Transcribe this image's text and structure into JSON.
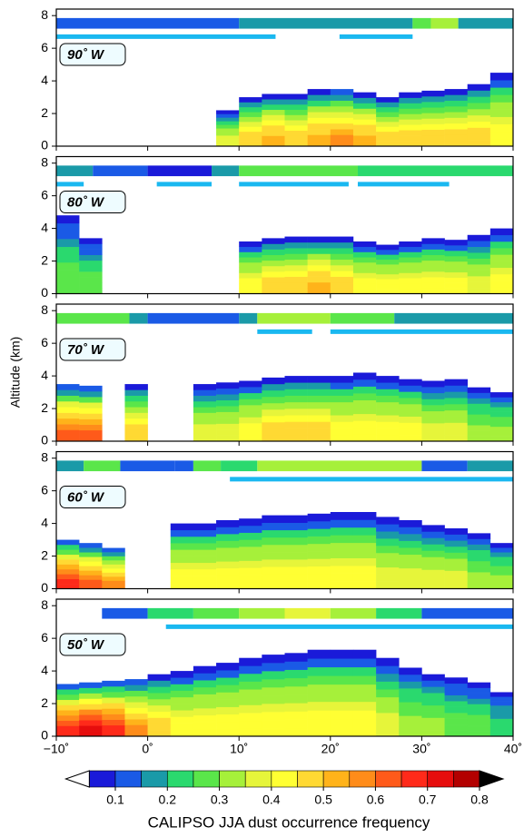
{
  "chart_data": {
    "type": "curtain",
    "ylabel": "Altitude (km)",
    "colorbar_label": "CALIPSO JJA dust occurrence frequency",
    "xlim": [
      -10,
      40
    ],
    "xticks": [
      {
        "value": -10,
        "label": "−10˚"
      },
      {
        "value": 0,
        "label": "0˚"
      },
      {
        "value": 10,
        "label": "10˚"
      },
      {
        "value": 20,
        "label": "20˚"
      },
      {
        "value": 30,
        "label": "30˚"
      },
      {
        "value": 40,
        "label": "40˚"
      }
    ],
    "ylim": [
      0,
      8.4
    ],
    "yticks": [
      0,
      2,
      4,
      6,
      8
    ],
    "bins": [
      -10,
      -7.5,
      -5,
      -2.5,
      0,
      2.5,
      5,
      7.5,
      10,
      12.5,
      15,
      17.5,
      20,
      22.5,
      25,
      27.5,
      30,
      32.5,
      35,
      37.5,
      40
    ],
    "levels": [
      0.05,
      0.1,
      0.15,
      0.2,
      0.25,
      0.3,
      0.35,
      0.4,
      0.45,
      0.5,
      0.55,
      0.6,
      0.65,
      0.7,
      0.75,
      0.8
    ],
    "colors": [
      "#1a1ad9",
      "#1a5ae6",
      "#1a9aa8",
      "#2ad96e",
      "#5ae64a",
      "#a6f03a",
      "#e6f53a",
      "#ffff33",
      "#ffd933",
      "#ffb31a",
      "#ff8c1a",
      "#ff5a1a",
      "#ff2a1a",
      "#e60d0d",
      "#b30000"
    ],
    "colorbar_ticks": [
      0.1,
      0.2,
      0.3,
      0.4,
      0.5,
      0.6,
      0.7,
      0.8
    ],
    "bar_color": "#1ab8f0",
    "panels": [
      {
        "label": "90˚ W",
        "tops": [
          null,
          null,
          null,
          null,
          null,
          null,
          null,
          2.2,
          3.0,
          3.2,
          3.2,
          3.5,
          3.5,
          3.3,
          3.0,
          3.3,
          3.4,
          3.5,
          3.8,
          4.5
        ],
        "peak": [
          null,
          null,
          null,
          null,
          null,
          null,
          null,
          0.4,
          0.5,
          0.55,
          0.5,
          0.55,
          0.6,
          0.55,
          0.5,
          0.5,
          0.5,
          0.5,
          0.5,
          0.45
        ],
        "strip_edges": [
          -10,
          10,
          29,
          31,
          34,
          40
        ],
        "strip_values": [
          0.12,
          0.17,
          0.27,
          0.32,
          0.17
        ],
        "bars": [
          [
            -10,
            14
          ],
          [
            21,
            29
          ]
        ]
      },
      {
        "label": "80˚ W",
        "tops": [
          4.8,
          3.4,
          null,
          null,
          null,
          null,
          null,
          null,
          3.2,
          3.4,
          3.5,
          3.5,
          3.5,
          3.2,
          3.0,
          3.2,
          3.4,
          3.3,
          3.6,
          4.0
        ],
        "peak": [
          0.3,
          0.3,
          null,
          null,
          null,
          null,
          null,
          null,
          0.45,
          0.5,
          0.5,
          0.55,
          0.5,
          0.45,
          0.45,
          0.45,
          0.45,
          0.45,
          0.4,
          0.45
        ],
        "strip_edges": [
          -10,
          -6,
          0,
          7,
          10,
          23,
          40
        ],
        "strip_values": [
          0.17,
          0.12,
          0.07,
          0.17,
          0.27,
          0.22
        ],
        "bars": [
          [
            -10,
            -7
          ],
          [
            1,
            7
          ],
          [
            10,
            22
          ],
          [
            23,
            33
          ]
        ]
      },
      {
        "label": "70˚ W",
        "tops": [
          3.5,
          3.4,
          null,
          3.5,
          null,
          null,
          3.5,
          3.6,
          3.7,
          3.9,
          4.0,
          4.0,
          4.0,
          4.2,
          4.0,
          3.8,
          3.7,
          3.8,
          3.3,
          3.0
        ],
        "peak": [
          0.65,
          0.65,
          null,
          0.5,
          null,
          null,
          0.4,
          0.4,
          0.45,
          0.5,
          0.5,
          0.5,
          0.45,
          0.45,
          0.45,
          0.45,
          0.4,
          0.4,
          0.35,
          0.35
        ],
        "strip_edges": [
          -10,
          -2,
          0,
          10,
          12,
          20,
          27,
          40
        ],
        "strip_values": [
          0.27,
          0.17,
          0.12,
          0.17,
          0.32,
          0.27,
          0.17
        ],
        "bars": [
          [
            12,
            18
          ],
          [
            20,
            40
          ]
        ]
      },
      {
        "label": "60˚ W",
        "tops": [
          3.0,
          2.8,
          2.5,
          null,
          null,
          4.0,
          4.0,
          4.2,
          4.3,
          4.5,
          4.5,
          4.6,
          4.7,
          4.7,
          4.4,
          4.2,
          3.9,
          3.7,
          3.4,
          2.8
        ],
        "peak": [
          0.7,
          0.65,
          0.6,
          null,
          null,
          0.45,
          0.45,
          0.45,
          0.45,
          0.45,
          0.45,
          0.45,
          0.45,
          0.45,
          0.4,
          0.4,
          0.4,
          0.4,
          0.35,
          0.35
        ],
        "strip_edges": [
          -10,
          -7,
          -3,
          3,
          5,
          8,
          12,
          30,
          35,
          40
        ],
        "strip_values": [
          0.17,
          0.27,
          0.12,
          0.12,
          0.27,
          0.22,
          0.32,
          0.12,
          0.17
        ],
        "bars": [
          [
            9,
            40
          ]
        ]
      },
      {
        "label": "50˚ W",
        "tops": [
          3.2,
          3.3,
          3.4,
          3.5,
          3.8,
          4.0,
          4.3,
          4.5,
          4.8,
          5.0,
          5.1,
          5.3,
          5.3,
          5.3,
          4.8,
          4.2,
          3.8,
          3.6,
          3.3,
          2.7
        ],
        "peak": [
          0.7,
          0.75,
          0.7,
          0.6,
          0.5,
          0.45,
          0.45,
          0.45,
          0.45,
          0.45,
          0.45,
          0.45,
          0.45,
          0.45,
          0.4,
          0.35,
          0.35,
          0.3,
          0.3,
          0.25
        ],
        "strip_edges": [
          -5,
          0,
          5,
          10,
          15,
          20,
          25,
          30,
          40
        ],
        "strip_values": [
          0.12,
          0.22,
          0.27,
          0.32,
          0.37,
          0.32,
          0.22,
          0.12
        ],
        "bars": [
          [
            2,
            40
          ]
        ]
      }
    ]
  }
}
